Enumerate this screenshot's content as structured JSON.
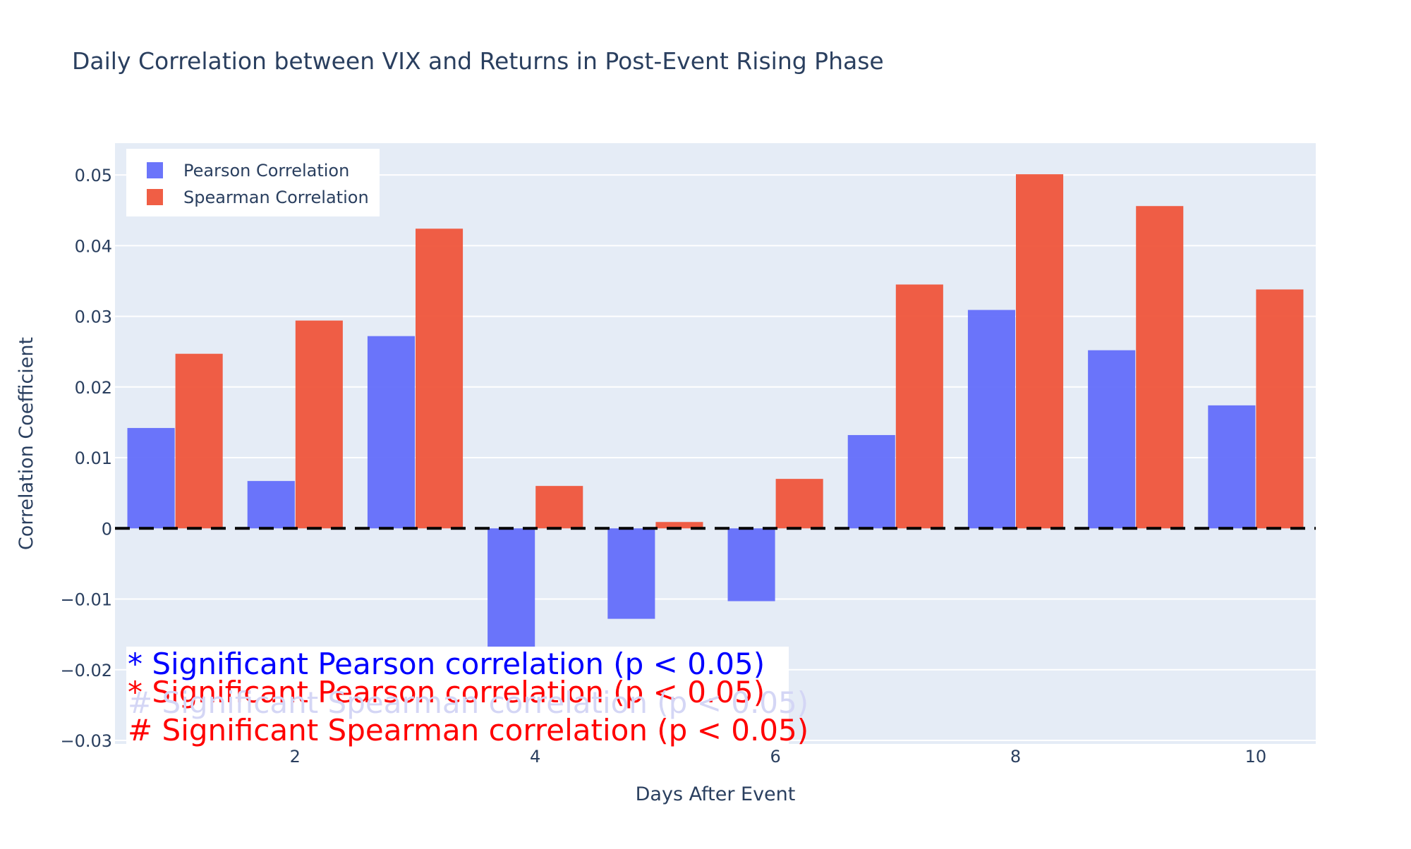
{
  "chart_data": {
    "type": "bar",
    "title": "Daily Correlation between VIX and Returns in Post-Event Rising Phase",
    "xlabel": "Days After Event",
    "ylabel": "Correlation Coefficient",
    "x": [
      1,
      2,
      3,
      4,
      5,
      6,
      7,
      8,
      9,
      10
    ],
    "xlim": [
      0.5,
      10.5
    ],
    "ylim": [
      -0.0305,
      0.0545
    ],
    "x_ticks": [
      2,
      4,
      6,
      8,
      10
    ],
    "x_tick_labels": [
      "2",
      "4",
      "6",
      "8",
      "10"
    ],
    "y_ticks": [
      -0.03,
      -0.02,
      -0.01,
      0,
      0.01,
      0.02,
      0.03,
      0.04,
      0.05
    ],
    "y_tick_labels": [
      "−0.03",
      "−0.02",
      "−0.01",
      "0",
      "0.01",
      "0.02",
      "0.03",
      "0.04",
      "0.05"
    ],
    "grid": true,
    "legend_position": "top-left",
    "series": [
      {
        "name": "Pearson Correlation",
        "color": "#636efa",
        "values": [
          0.0142,
          0.0067,
          0.0272,
          -0.0172,
          -0.0128,
          -0.0103,
          0.0132,
          0.0309,
          0.0252,
          0.0174
        ]
      },
      {
        "name": "Spearman Correlation",
        "color": "#ef553b",
        "values": [
          0.0247,
          0.0294,
          0.0424,
          0.006,
          0.0009,
          0.007,
          0.0345,
          0.0501,
          0.0456,
          0.0338
        ]
      }
    ],
    "reference_line": {
      "y": 0,
      "style": "dashed",
      "color": "#000000"
    },
    "annotations": [
      {
        "text": "* Significant Pearson correlation (p < 0.05)",
        "color": "#0000ff"
      },
      {
        "text": "* Significant Pearson correlation (p < 0.05)",
        "color": "#ff0000"
      },
      {
        "text": "# Significant Spearman correlation (p < 0.05)",
        "color": "#d4d6f5"
      },
      {
        "text": "# Significant Spearman correlation (p < 0.05)",
        "color": "#ff0000"
      }
    ]
  }
}
